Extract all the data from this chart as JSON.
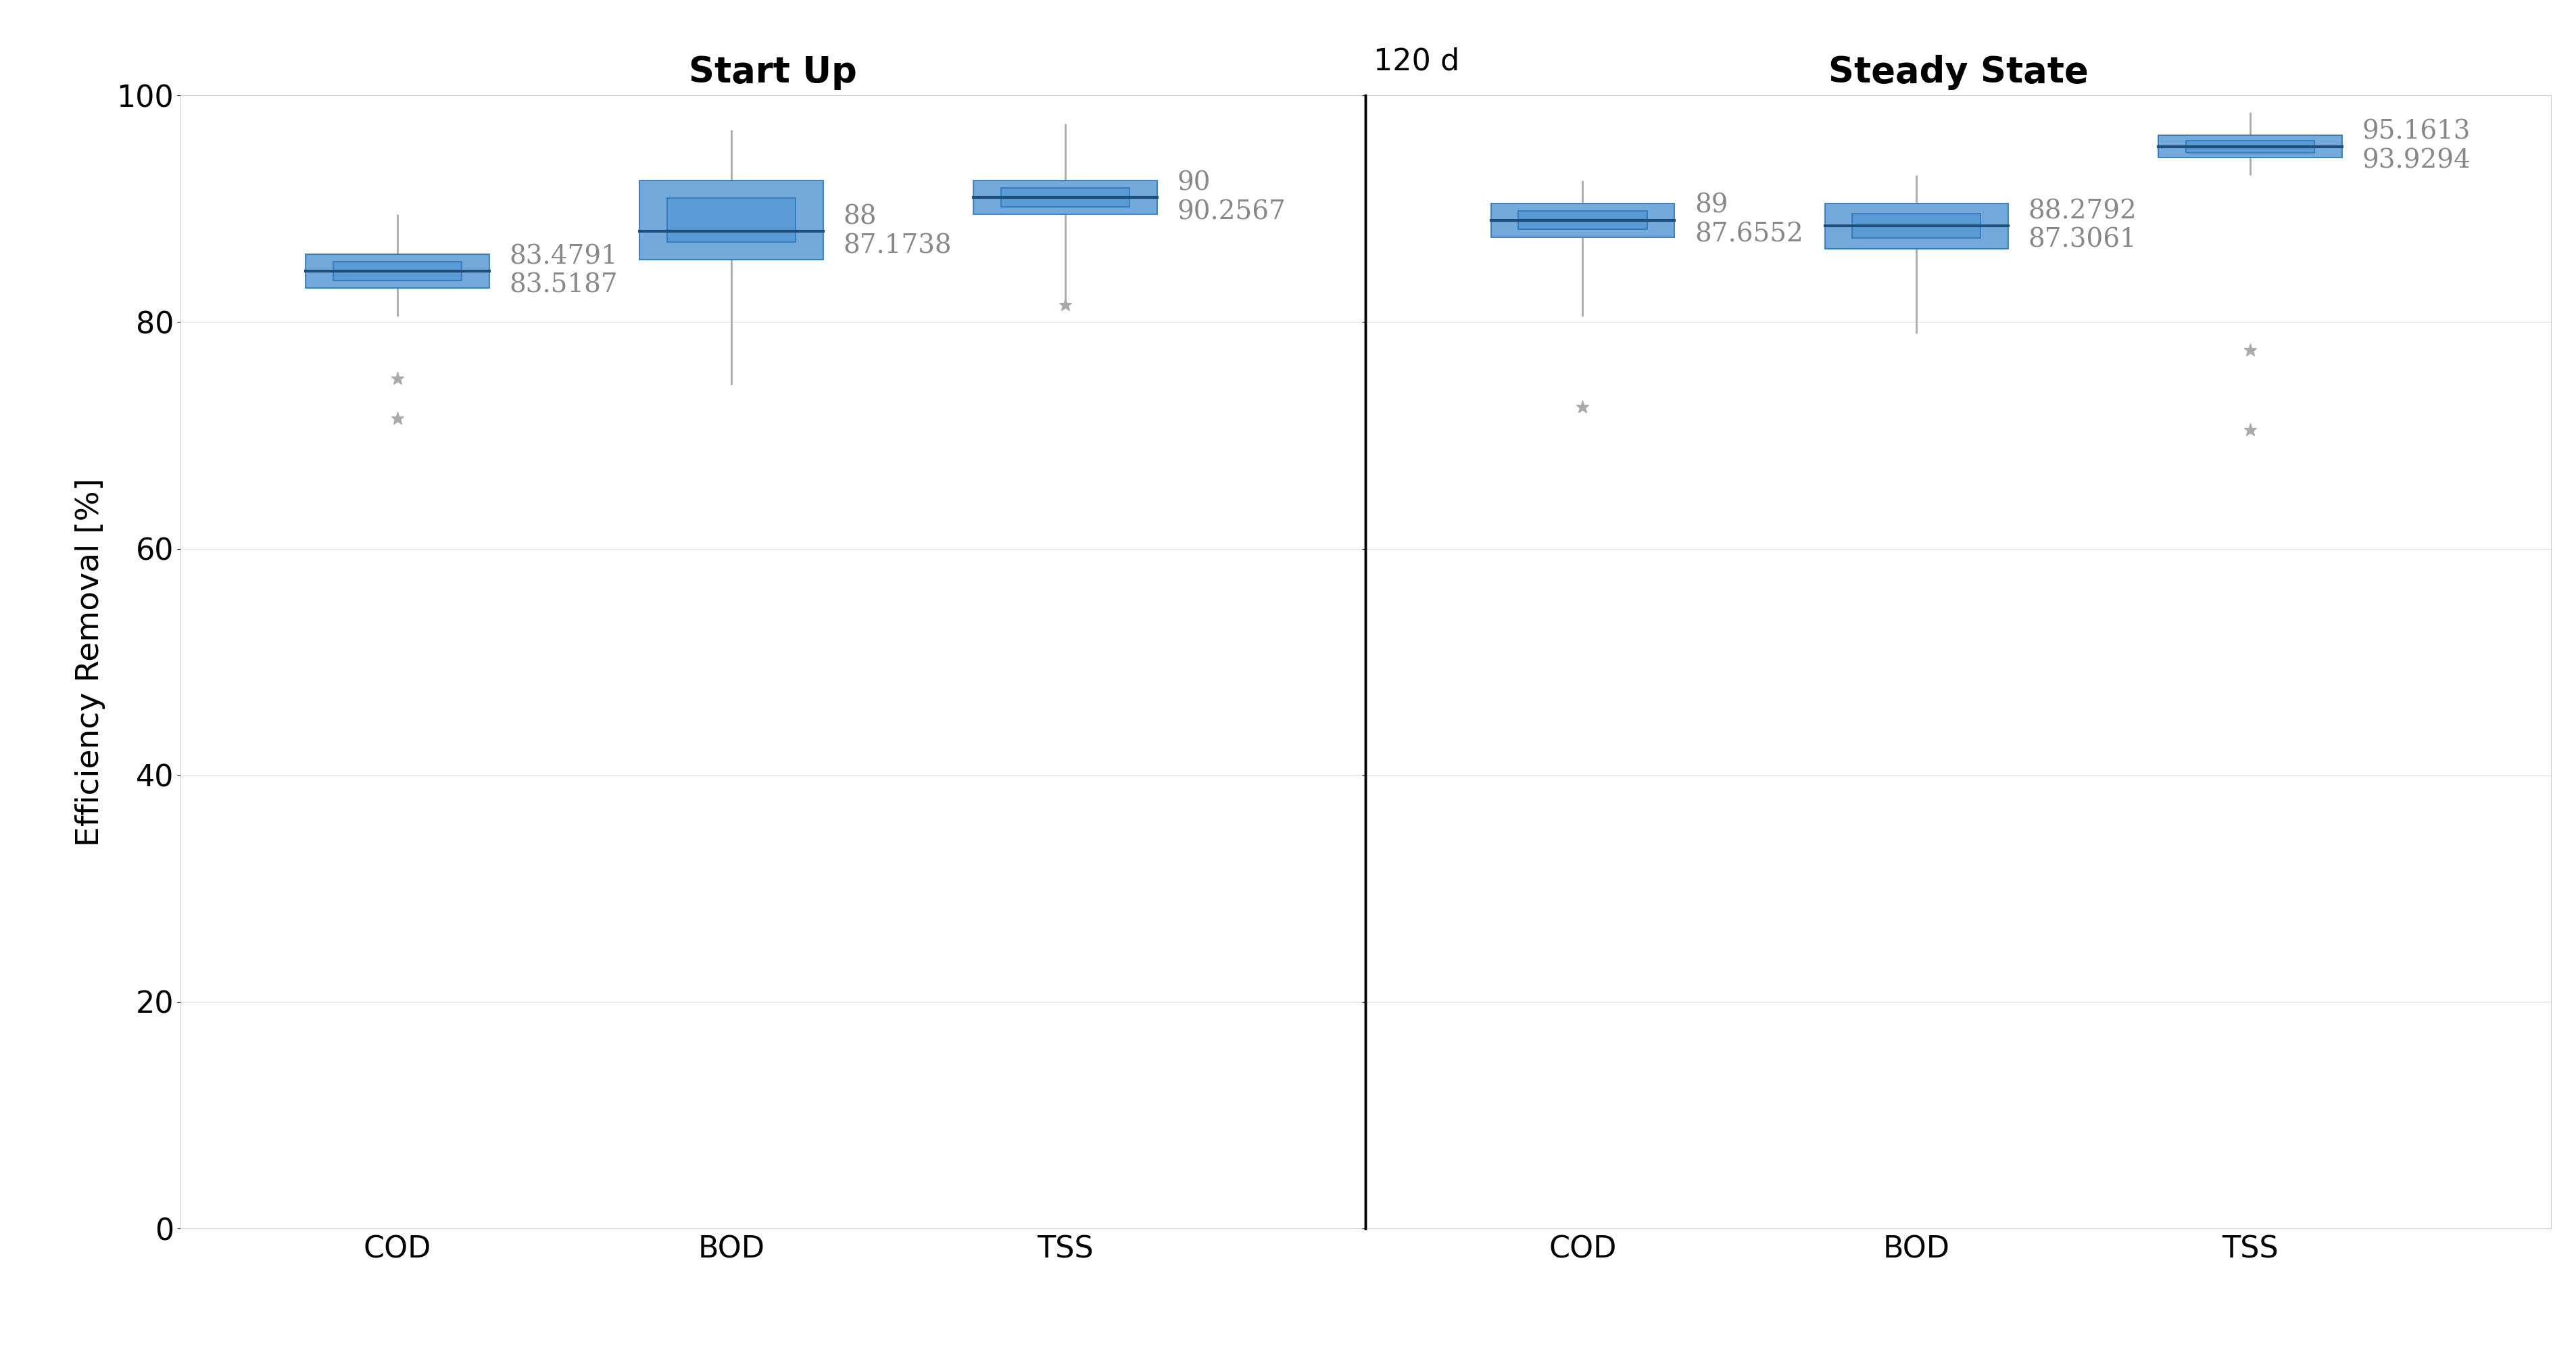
{
  "title_left": "Start Up",
  "title_right": "Steady State",
  "divider_label": "120 d",
  "ylabel": "Efficiency Removal [%]",
  "ylim": [
    0,
    100
  ],
  "yticks": [
    0,
    20,
    40,
    60,
    80,
    100
  ],
  "xlabels_left": [
    "COD",
    "BOD",
    "TSS"
  ],
  "xlabels_right": [
    "COD",
    "BOD",
    "TSS"
  ],
  "box_color": "#5B9BD5",
  "box_edge_color": "#2E75B6",
  "median_color": "#1F4E79",
  "whisker_color": "#AAAAAA",
  "flier_color": "#AAAAAA",
  "background_color": "#FFFFFF",
  "axes_background": "#FFFFFF",
  "startup": {
    "COD": {
      "whislo": 80.5,
      "q1": 83.0,
      "med": 84.5,
      "q3": 86.0,
      "whishi": 89.5,
      "fliers": [
        75.0,
        71.5
      ],
      "annotation": "83.4791\n83.5187"
    },
    "BOD": {
      "whislo": 74.5,
      "q1": 85.5,
      "med": 88.0,
      "q3": 92.5,
      "whishi": 97.0,
      "fliers": [],
      "annotation": "88\n87.1738"
    },
    "TSS": {
      "whislo": 82.0,
      "q1": 89.5,
      "med": 91.0,
      "q3": 92.5,
      "whishi": 97.5,
      "fliers": [
        81.5
      ],
      "annotation": "90\n90.2567"
    }
  },
  "steadystate": {
    "COD": {
      "whislo": 80.5,
      "q1": 87.5,
      "med": 89.0,
      "q3": 90.5,
      "whishi": 92.5,
      "fliers": [
        72.5
      ],
      "annotation": "89\n87.6552"
    },
    "BOD": {
      "whislo": 79.0,
      "q1": 86.5,
      "med": 88.5,
      "q3": 90.5,
      "whishi": 93.0,
      "fliers": [],
      "annotation": "88.2792\n87.3061"
    },
    "TSS": {
      "whislo": 93.0,
      "q1": 94.5,
      "med": 95.5,
      "q3": 96.5,
      "whishi": 98.5,
      "fliers": [
        77.5,
        70.5
      ],
      "annotation": "95.1613\n93.9294"
    }
  },
  "font_size_title": 38,
  "font_size_ticks": 32,
  "font_size_labels": 34,
  "font_size_annotations": 28,
  "font_size_divider": 32,
  "box_width": 0.55
}
